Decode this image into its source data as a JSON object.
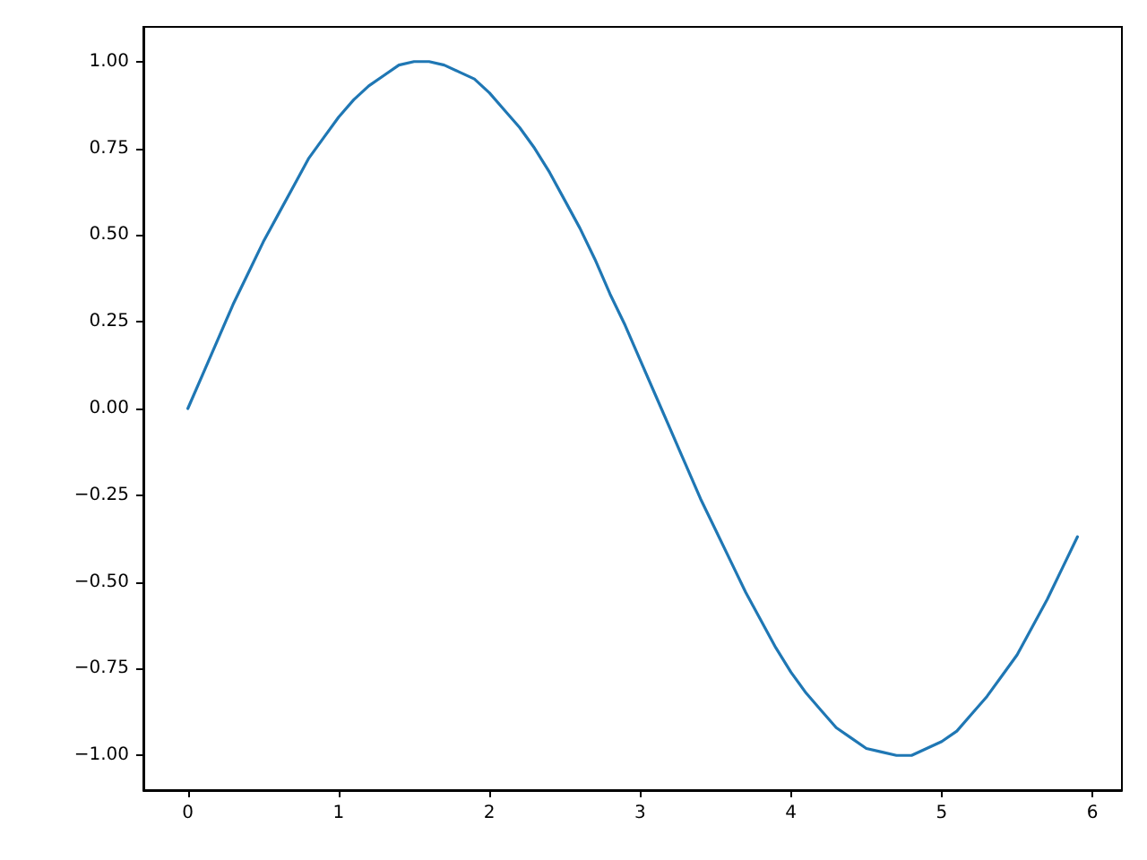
{
  "chart_data": {
    "type": "line",
    "x": [
      0,
      0.1,
      0.2,
      0.3,
      0.4,
      0.5,
      0.6,
      0.7,
      0.8,
      0.9,
      1.0,
      1.1,
      1.2,
      1.3,
      1.4,
      1.5,
      1.6,
      1.7,
      1.8,
      1.9,
      2.0,
      2.1,
      2.2,
      2.3,
      2.4,
      2.5,
      2.6,
      2.7,
      2.8,
      2.9,
      3.0,
      3.1,
      3.2,
      3.3,
      3.4,
      3.5,
      3.6,
      3.7,
      3.8,
      3.9,
      4.0,
      4.1,
      4.2,
      4.3,
      4.4,
      4.5,
      4.6,
      4.7,
      4.8,
      4.9,
      5.0,
      5.1,
      5.2,
      5.3,
      5.4,
      5.5,
      5.6,
      5.7,
      5.8,
      5.9
    ],
    "series": [
      {
        "color": "#1f77b4",
        "values": [
          0,
          0.1,
          0.2,
          0.3,
          0.39,
          0.48,
          0.56,
          0.64,
          0.72,
          0.78,
          0.84,
          0.89,
          0.93,
          0.96,
          0.99,
          1.0,
          1.0,
          0.99,
          0.97,
          0.95,
          0.91,
          0.86,
          0.81,
          0.75,
          0.68,
          0.6,
          0.52,
          0.43,
          0.33,
          0.24,
          0.14,
          0.04,
          -0.06,
          -0.16,
          -0.26,
          -0.35,
          -0.44,
          -0.53,
          -0.61,
          -0.69,
          -0.76,
          -0.82,
          -0.87,
          -0.92,
          -0.95,
          -0.98,
          -0.99,
          -1.0,
          -1.0,
          -0.98,
          -0.96,
          -0.93,
          -0.88,
          -0.83,
          -0.77,
          -0.71,
          -0.63,
          -0.55,
          -0.46,
          -0.37
        ]
      }
    ],
    "xlim": [
      -0.295,
      6.195
    ],
    "xticks": [
      0,
      1,
      2,
      3,
      4,
      5,
      6
    ],
    "ylim": [
      -1.1,
      1.1
    ],
    "yticks": [
      {
        "value": -1,
        "label": "−1.00"
      },
      {
        "value": -0.75,
        "label": "−0.75"
      },
      {
        "value": -0.5,
        "label": "−0.50"
      },
      {
        "value": -0.25,
        "label": "−0.25"
      },
      {
        "value": 0,
        "label": "0.00"
      },
      {
        "value": 0.25,
        "label": "0.25"
      },
      {
        "value": 0.5,
        "label": "0.50"
      },
      {
        "value": 0.75,
        "label": "0.75"
      },
      {
        "value": 1,
        "label": "1.00"
      }
    ],
    "grid": false,
    "marker": "none",
    "line_style": "solid"
  }
}
